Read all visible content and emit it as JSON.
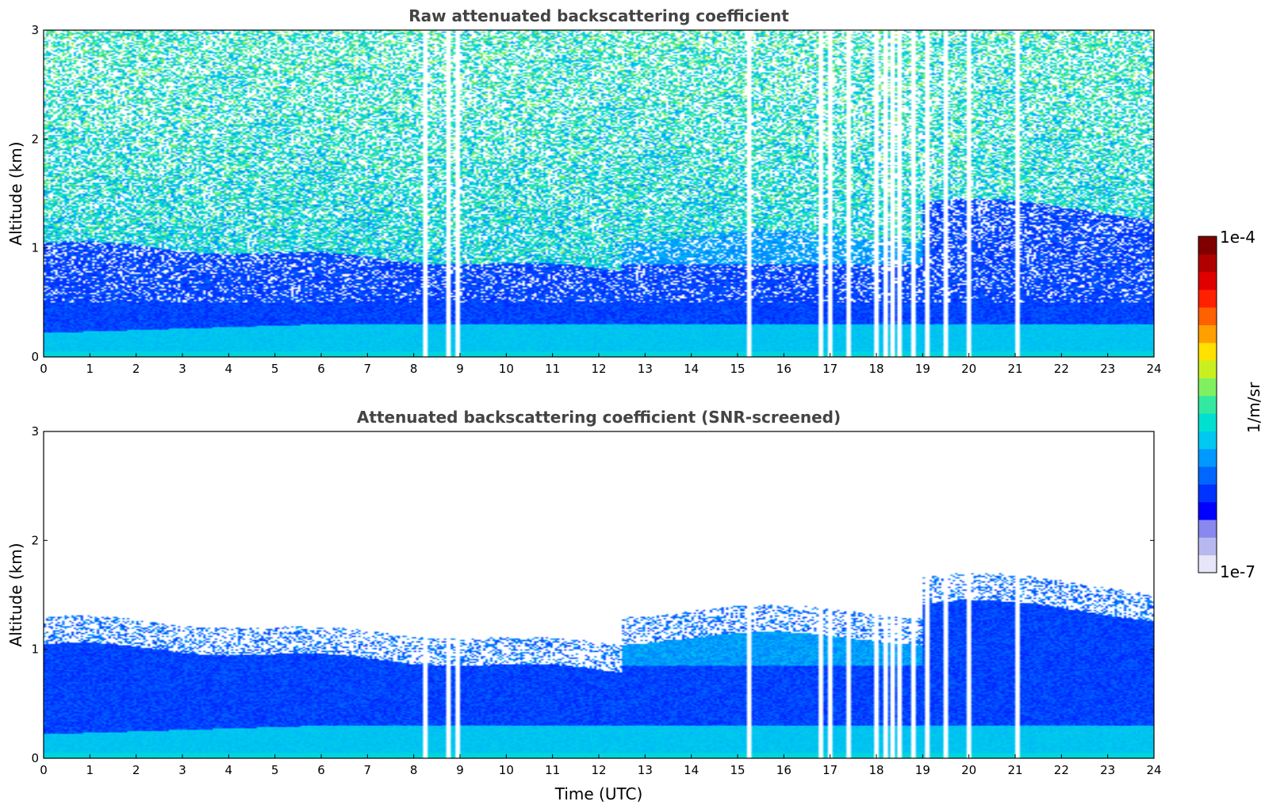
{
  "colors": {
    "background": "#ffffff",
    "title_text": "#444444",
    "colormap": [
      "#e6e6f8",
      "#b8b8f0",
      "#8888ee",
      "#0000ff",
      "#0033ff",
      "#0066ff",
      "#0099ff",
      "#00c8f0",
      "#00e0d0",
      "#33e8a0",
      "#80f060",
      "#c8f020",
      "#ffe000",
      "#ffa000",
      "#ff6000",
      "#ff2000",
      "#e00000",
      "#b00000",
      "#800000"
    ]
  },
  "chart_data": [
    {
      "type": "heatmap",
      "title": "Raw attenuated backscattering coefficient",
      "xlabel": "",
      "ylabel": "Altitude (km)",
      "xlim": [
        0,
        24
      ],
      "ylim": [
        0,
        3
      ],
      "x_ticks": [
        "0",
        "1",
        "2",
        "3",
        "4",
        "5",
        "6",
        "7",
        "8",
        "9",
        "10",
        "11",
        "12",
        "13",
        "14",
        "15",
        "16",
        "17",
        "18",
        "19",
        "20",
        "21",
        "22",
        "23",
        "24"
      ],
      "y_ticks": [
        "0",
        "1",
        "2",
        "3"
      ],
      "dropout_times_utc": [
        8.25,
        8.75,
        8.95,
        15.25,
        16.8,
        17.0,
        17.4,
        18.0,
        18.2,
        18.35,
        18.5,
        18.8,
        19.1,
        19.5,
        20.0,
        21.05
      ],
      "noise": "high above 1 km"
    },
    {
      "type": "heatmap",
      "title": "Attenuated backscattering coefficient (SNR-screened)",
      "xlabel": "Time (UTC)",
      "ylabel": "Altitude (km)",
      "xlim": [
        0,
        24
      ],
      "ylim": [
        0,
        3
      ],
      "x_ticks": [
        "0",
        "1",
        "2",
        "3",
        "4",
        "5",
        "6",
        "7",
        "8",
        "9",
        "10",
        "11",
        "12",
        "13",
        "14",
        "15",
        "16",
        "17",
        "18",
        "19",
        "20",
        "21",
        "22",
        "23",
        "24"
      ],
      "y_ticks": [
        "0",
        "1",
        "2",
        "3"
      ],
      "dropout_times_utc": [
        8.25,
        8.75,
        8.95,
        15.25,
        16.8,
        17.0,
        17.4,
        18.0,
        18.2,
        18.35,
        18.5,
        18.8,
        19.1,
        19.5,
        20.0,
        21.05
      ],
      "noise": "screened"
    }
  ],
  "colorbar": {
    "label": "1/m/sr",
    "max_label": "1e-4",
    "min_label": "1e-7",
    "range": [
      1e-07,
      0.0001
    ],
    "scale": "log"
  }
}
